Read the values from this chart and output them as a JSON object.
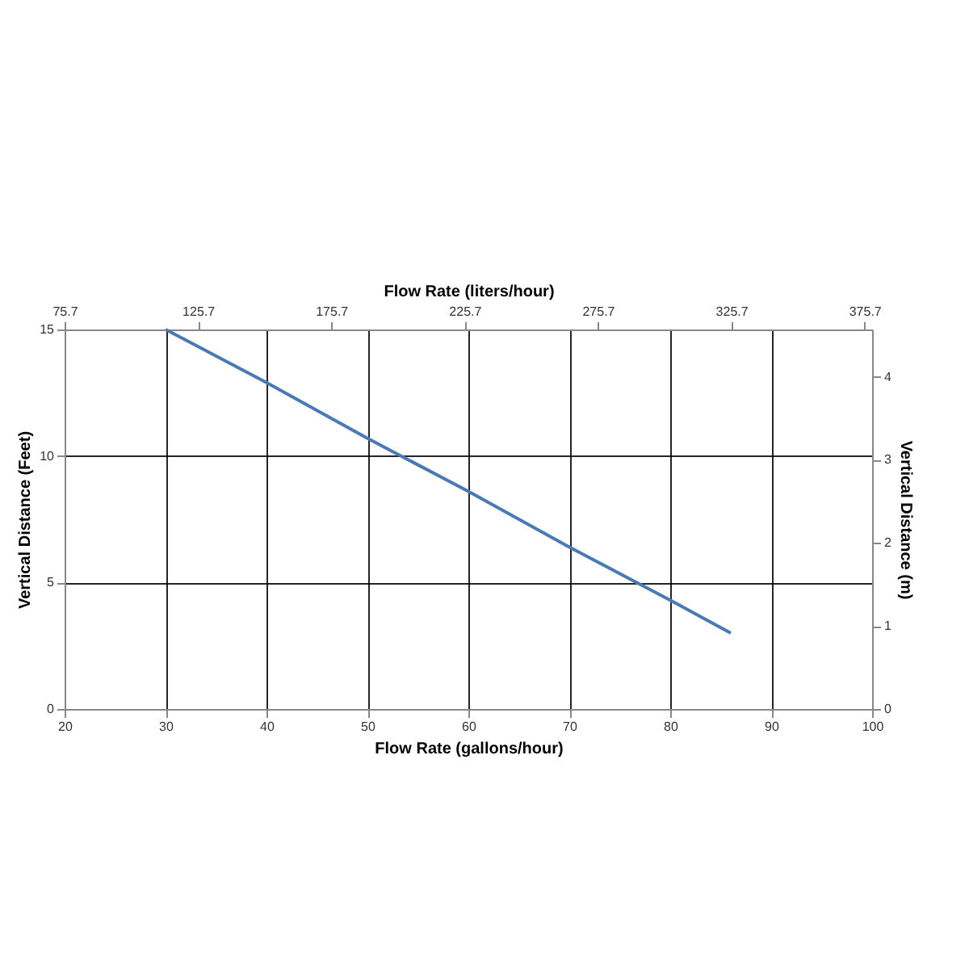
{
  "chart_data": {
    "type": "line",
    "xlabel": "Flow Rate (gallons/hour)",
    "ylabel": "Vertical Distance (Feet)",
    "x2label": "Flow Rate (liters/hour)",
    "y2label": "Vertical Distance (m)",
    "x": [
      30,
      40,
      50,
      60,
      70,
      80,
      86
    ],
    "series": [
      {
        "color": "#4a7ab5",
        "values": [
          15,
          12.9,
          10.7,
          8.6,
          6.4,
          4.3,
          3
        ]
      }
    ],
    "xlim": [
      20,
      100
    ],
    "xticks": [
      20,
      30,
      40,
      50,
      60,
      70,
      80,
      90,
      100
    ],
    "ylim": [
      0,
      15
    ],
    "yticks": [
      0,
      5,
      10,
      15
    ],
    "x2lim": [
      75.7,
      378.5
    ],
    "x2ticks": [
      75.7,
      125.7,
      175.7,
      225.7,
      275.7,
      325.7,
      375.7
    ],
    "y2lim": [
      0,
      4.57
    ],
    "y2ticks": [
      0,
      1,
      2,
      3,
      4
    ],
    "grid": true,
    "legend": false,
    "marker": "none",
    "line_style": "solid"
  }
}
